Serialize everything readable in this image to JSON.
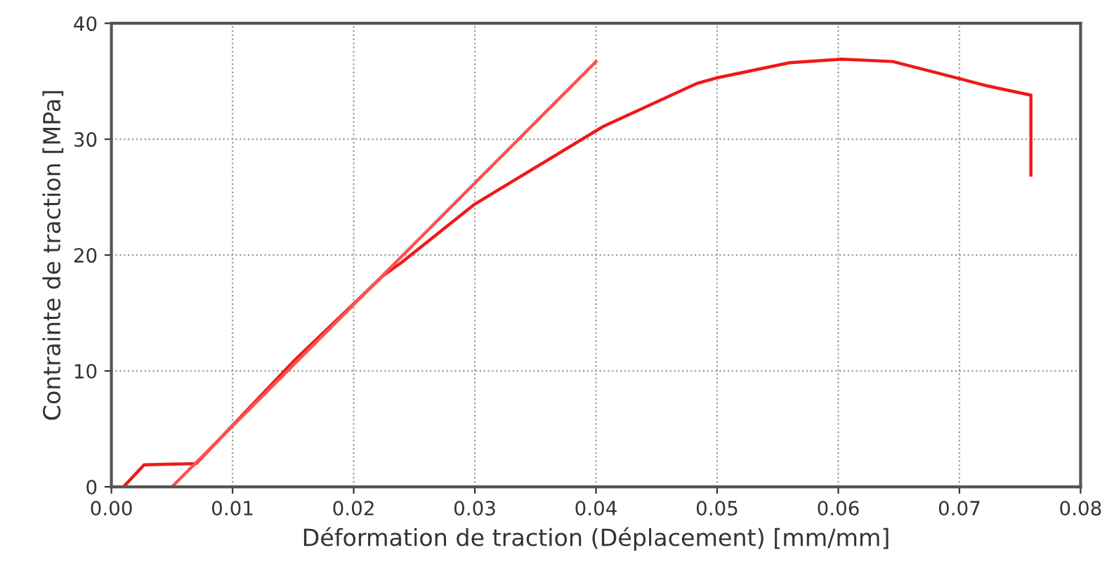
{
  "chart_data": {
    "type": "line",
    "xlabel": "Déformation de traction (Déplacement) [mm/mm]",
    "ylabel": "Contrainte de traction [MPa]",
    "xlim": [
      0,
      0.08
    ],
    "ylim": [
      0,
      40
    ],
    "xticks": [
      {
        "value": 0,
        "label": "0.00"
      },
      {
        "value": 0.01,
        "label": "0.01"
      },
      {
        "value": 0.02,
        "label": "0.02"
      },
      {
        "value": 0.03,
        "label": "0.03"
      },
      {
        "value": 0.04,
        "label": "0.04"
      },
      {
        "value": 0.05,
        "label": "0.05"
      },
      {
        "value": 0.06,
        "label": "0.06"
      },
      {
        "value": 0.07,
        "label": "0.07"
      },
      {
        "value": 0.08,
        "label": "0.08"
      }
    ],
    "yticks": [
      0,
      10,
      20,
      30,
      40
    ],
    "grid": true,
    "line_style": "solid",
    "marker": "none",
    "series": [
      {
        "color": "#f01818",
        "x": [
          0.001,
          0.0027,
          0.007,
          0.0151,
          0.0224,
          0.024,
          0.03,
          0.0406,
          0.0483,
          0.05,
          0.056,
          0.0603,
          0.0645,
          0.0701,
          0.0723,
          0.0759,
          0.0759
        ],
        "values": [
          0,
          1.9,
          2,
          10.9,
          18.2,
          19.4,
          24.4,
          31.1,
          34.8,
          35.3,
          36.6,
          36.9,
          36.7,
          35.2,
          34.6,
          33.8,
          26.9
        ]
      },
      {
        "color": "#ff5050",
        "x": [
          0.005,
          0.04
        ],
        "values": [
          0,
          36.7
        ]
      }
    ]
  }
}
